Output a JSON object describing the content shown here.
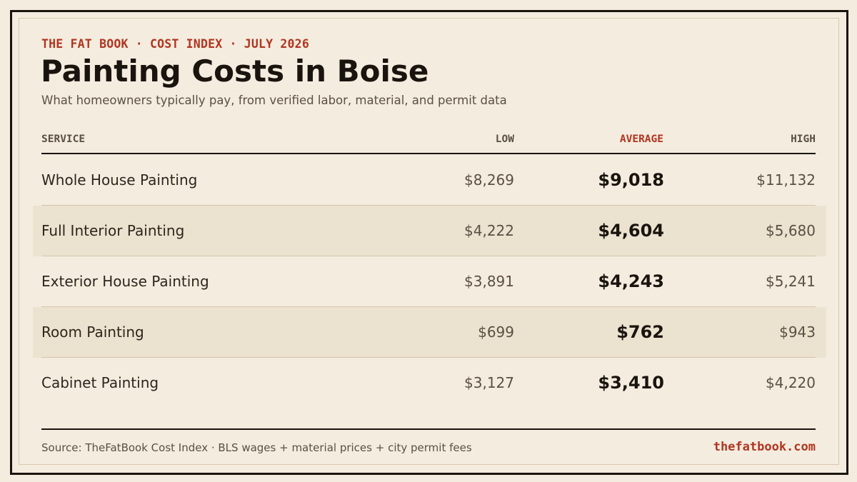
{
  "header": {
    "kicker": "THE FAT BOOK · COST INDEX · JULY 2026",
    "title": "Painting Costs in Boise",
    "subtitle": "What homeowners typically pay, from verified labor, material, and permit data"
  },
  "table": {
    "columns": {
      "service": "SERVICE",
      "low": "LOW",
      "average": "AVERAGE",
      "high": "HIGH"
    },
    "rows": [
      {
        "service": "Whole House Painting",
        "low": "$8,269",
        "average": "$9,018",
        "high": "$11,132"
      },
      {
        "service": "Full Interior Painting",
        "low": "$4,222",
        "average": "$4,604",
        "high": "$5,680"
      },
      {
        "service": "Exterior House Painting",
        "low": "$3,891",
        "average": "$4,243",
        "high": "$5,241"
      },
      {
        "service": "Room Painting",
        "low": "$699",
        "average": "$762",
        "high": "$943"
      },
      {
        "service": "Cabinet Painting",
        "low": "$3,127",
        "average": "$3,410",
        "high": "$4,220"
      }
    ]
  },
  "footer": {
    "source": "Source: TheFatBook Cost Index · BLS wages + material prices + city permit fees",
    "site": "thefatbook.com"
  },
  "colors": {
    "background": "#f4ecdf",
    "accent": "#b03520",
    "ink": "#1a140e",
    "shaded_row": "#ece2d0"
  }
}
